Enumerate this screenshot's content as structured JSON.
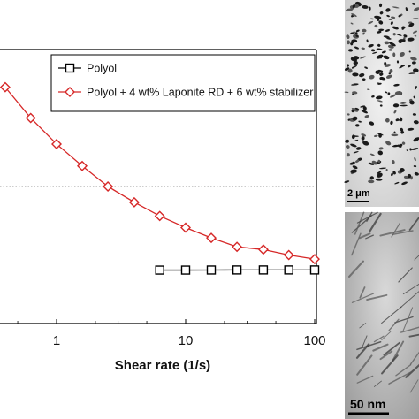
{
  "chart_data": {
    "type": "line",
    "x_scale": "log",
    "xlabel": "Shear rate (1/s)",
    "x_ticks": [
      "1",
      "10",
      "100"
    ],
    "xlim": [
      0.3,
      100
    ],
    "grid": true,
    "legend_position": "top-right",
    "series": [
      {
        "name": "Polyol",
        "color": "#000000",
        "marker": "square",
        "x": [
          6.3,
          10,
          15.8,
          25,
          40,
          63,
          100
        ],
        "y": [
          0.78,
          0.78,
          0.781,
          0.782,
          0.782,
          0.782,
          0.782
        ]
      },
      {
        "name": "Polyol + 4 wt% Laponite RD + 6 wt% stabilizer",
        "color": "#d62828",
        "marker": "diamond",
        "x": [
          0.4,
          0.63,
          1,
          1.58,
          2.5,
          4,
          6.3,
          10,
          15.8,
          25,
          40,
          63,
          100
        ],
        "y": [
          3.45,
          3.0,
          2.62,
          2.3,
          2.0,
          1.77,
          1.57,
          1.4,
          1.25,
          1.12,
          1.08,
          1.0,
          0.94
        ]
      }
    ]
  },
  "micrographs": [
    {
      "scale_label": "2 μm"
    },
    {
      "scale_label": "50 nm"
    }
  ]
}
